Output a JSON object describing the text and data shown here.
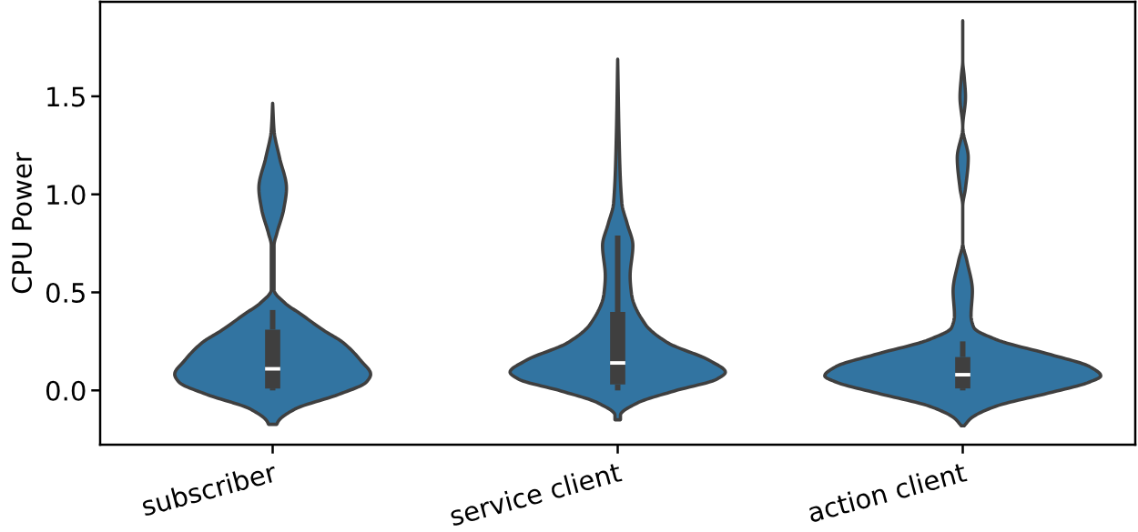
{
  "chart_data": {
    "type": "box",
    "ylabel": "CPU Power",
    "categories": [
      "subscriber",
      "service client",
      "action client"
    ],
    "ylim": [
      -0.277,
      1.982
    ],
    "yticks": [
      {
        "value": 0,
        "label": "0.0"
      },
      {
        "value": 0.5,
        "label": "0.5"
      },
      {
        "value": 1,
        "label": "1.0"
      },
      {
        "value": 1.5,
        "label": "1.5"
      }
    ],
    "grid": false,
    "colors": [
      "#3f3f3f",
      "#3f3f3f",
      "#3f3f3f"
    ],
    "boxes": [
      {
        "low": 0.0,
        "q1": 0.01,
        "median": 0.11,
        "q3": 0.31,
        "high": 0.41
      },
      {
        "low": 0.0,
        "q1": 0.03,
        "median": 0.14,
        "q3": 0.4,
        "high": 0.79
      },
      {
        "low": 0.0,
        "q1": 0.01,
        "median": 0.08,
        "q3": 0.17,
        "high": 0.25
      }
    ]
  }
}
